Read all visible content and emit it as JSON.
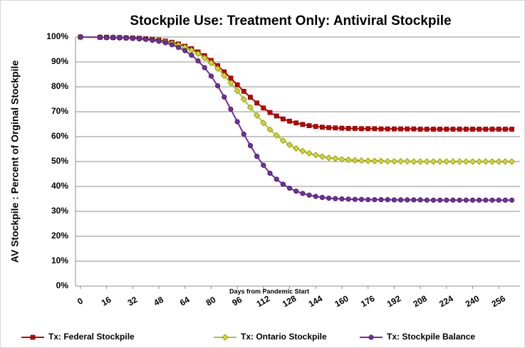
{
  "chart_data": {
    "type": "line",
    "title": "Stockpile Use: Treatment Only: Antiviral Stockpile",
    "xlabel": "Days from Pandemic Start",
    "ylabel": "AV Stockpile : Percent of Orginal Stockpile",
    "x": [
      0,
      12,
      16,
      20,
      24,
      28,
      32,
      36,
      40,
      44,
      48,
      52,
      56,
      60,
      64,
      68,
      72,
      76,
      80,
      84,
      88,
      92,
      96,
      100,
      104,
      108,
      112,
      116,
      120,
      124,
      128,
      132,
      136,
      140,
      144,
      148,
      152,
      156,
      160,
      164,
      168,
      172,
      176,
      180,
      184,
      188,
      192,
      196,
      200,
      204,
      208,
      212,
      216,
      220,
      224,
      228,
      232,
      236,
      240,
      244,
      248,
      252,
      256,
      260,
      264
    ],
    "series": [
      {
        "name": "Tx: Federal Stockpile",
        "color": "#c00000",
        "marker": "square",
        "values": [
          100,
          99.9,
          99.9,
          99.8,
          99.8,
          99.7,
          99.6,
          99.5,
          99.3,
          99.1,
          98.8,
          98.4,
          97.9,
          97.2,
          96.3,
          95.3,
          94.0,
          92.5,
          90.6,
          88.5,
          86.0,
          83.5,
          80.8,
          78.2,
          75.8,
          73.5,
          71.5,
          69.7,
          68.3,
          67.1,
          66.2,
          65.5,
          64.9,
          64.4,
          64.1,
          63.8,
          63.6,
          63.5,
          63.4,
          63.3,
          63.3,
          63.2,
          63.2,
          63.2,
          63.1,
          63.1,
          63.1,
          63.1,
          63.1,
          63.1,
          63.0,
          63.0,
          63.0,
          63.0,
          63.0,
          63.0,
          63.0,
          63.0,
          63.0,
          63.0,
          63.0,
          63.0,
          63.0,
          63.0,
          63.0
        ]
      },
      {
        "name": "Tx: Ontario Stockpile",
        "color": "#9acd32",
        "marker": "diamond",
        "values": [
          100,
          99.9,
          99.8,
          99.8,
          99.7,
          99.6,
          99.5,
          99.3,
          99.1,
          98.8,
          98.5,
          98.0,
          97.5,
          96.8,
          95.9,
          94.7,
          93.3,
          91.6,
          89.6,
          87.3,
          84.5,
          81.5,
          78.4,
          75.0,
          71.7,
          68.5,
          65.5,
          62.8,
          60.5,
          58.4,
          56.7,
          55.3,
          54.2,
          53.3,
          52.6,
          52.0,
          51.5,
          51.2,
          50.9,
          50.7,
          50.5,
          50.4,
          50.3,
          50.2,
          50.2,
          50.1,
          50.1,
          50.1,
          50.1,
          50.0,
          50.0,
          50.0,
          50.0,
          50.0,
          50.0,
          50.0,
          50.0,
          50.0,
          50.0,
          50.0,
          50.0,
          50.0,
          50.0,
          50.0,
          50.0
        ]
      },
      {
        "name": "Tx: Stockpile Balance",
        "color": "#7030a0",
        "marker": "circle",
        "values": [
          100,
          99.9,
          99.8,
          99.8,
          99.7,
          99.6,
          99.5,
          99.3,
          99.1,
          98.7,
          98.3,
          97.7,
          96.9,
          95.8,
          94.5,
          92.7,
          90.4,
          87.7,
          84.3,
          80.4,
          75.9,
          71.0,
          66.0,
          61.0,
          56.4,
          52.1,
          48.5,
          45.3,
          42.9,
          40.9,
          39.3,
          38.1,
          37.2,
          36.5,
          36.0,
          35.6,
          35.3,
          35.1,
          35.0,
          34.9,
          34.8,
          34.8,
          34.7,
          34.7,
          34.7,
          34.7,
          34.6,
          34.6,
          34.6,
          34.6,
          34.6,
          34.5,
          34.5,
          34.5,
          34.5,
          34.5,
          34.5,
          34.5,
          34.5,
          34.5,
          34.5,
          34.5,
          34.5,
          34.5,
          34.5
        ]
      }
    ],
    "xlim": [
      -3,
      269
    ],
    "xticks": [
      0,
      16,
      32,
      48,
      64,
      80,
      96,
      112,
      128,
      144,
      160,
      176,
      192,
      208,
      224,
      240,
      256
    ],
    "ylim": [
      0,
      100
    ],
    "yticks": [
      {
        "value": 0,
        "label": "0%"
      },
      {
        "value": 10,
        "label": "10%"
      },
      {
        "value": 20,
        "label": "20%"
      },
      {
        "value": 30,
        "label": "30%"
      },
      {
        "value": 40,
        "label": "40%"
      },
      {
        "value": 50,
        "label": "50%"
      },
      {
        "value": 60,
        "label": "60%"
      },
      {
        "value": 70,
        "label": "70%"
      },
      {
        "value": 80,
        "label": "80%"
      },
      {
        "value": 90,
        "label": "90%"
      },
      {
        "value": 100,
        "label": "100%"
      }
    ],
    "grid": true,
    "legend": "bottom"
  }
}
